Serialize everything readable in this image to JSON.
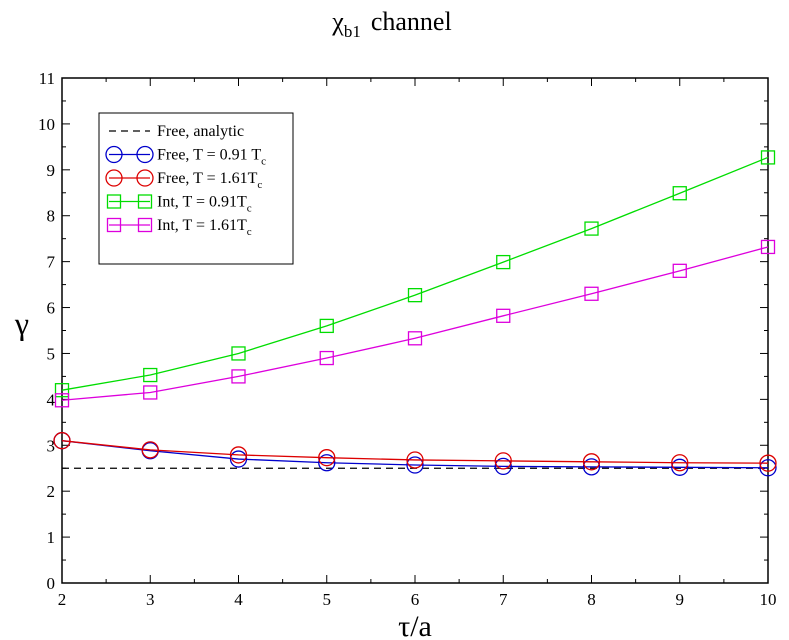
{
  "title": {
    "main": "χ",
    "sub": "b1",
    "rest": "channel"
  },
  "chart_data": {
    "type": "line",
    "xlabel": "τ/a",
    "ylabel": "γ",
    "xlim": [
      2,
      10
    ],
    "ylim": [
      0,
      11
    ],
    "x_ticks": [
      2,
      3,
      4,
      5,
      6,
      7,
      8,
      9,
      10
    ],
    "y_ticks": [
      0,
      1,
      2,
      3,
      4,
      5,
      6,
      7,
      8,
      9,
      10,
      11
    ],
    "grid": false,
    "legend_position": "top-left",
    "x": [
      2,
      3,
      4,
      5,
      6,
      7,
      8,
      9,
      10
    ],
    "series": [
      {
        "key": "analytic",
        "name": "Free, analytic",
        "color": "#000000",
        "dashed": true,
        "marker": "none",
        "values": [
          2.5,
          2.5,
          2.5,
          2.5,
          2.5,
          2.5,
          2.5,
          2.5,
          2.5
        ]
      },
      {
        "key": "free091",
        "name": "Free, T = 0.91 T",
        "name_sub": "c",
        "color": "#0000cc",
        "dashed": false,
        "marker": "circle",
        "values": [
          3.1,
          2.88,
          2.7,
          2.62,
          2.57,
          2.54,
          2.53,
          2.52,
          2.51
        ]
      },
      {
        "key": "free161",
        "name": "Free, T = 1.61T",
        "name_sub": "c",
        "color": "#dd0000",
        "dashed": false,
        "marker": "circle",
        "values": [
          3.1,
          2.9,
          2.79,
          2.73,
          2.68,
          2.66,
          2.64,
          2.62,
          2.61
        ]
      },
      {
        "key": "int091",
        "name": "Int, T = 0.91T",
        "name_sub": "c",
        "color": "#00dd00",
        "dashed": false,
        "marker": "square",
        "values": [
          4.2,
          4.53,
          5.0,
          5.6,
          6.27,
          6.99,
          7.72,
          8.49,
          9.27
        ]
      },
      {
        "key": "int161",
        "name": "Int, T = 1.61T",
        "name_sub": "c",
        "color": "#dd00dd",
        "dashed": false,
        "marker": "square",
        "values": [
          3.98,
          4.15,
          4.5,
          4.9,
          5.33,
          5.82,
          6.3,
          6.8,
          7.32
        ]
      }
    ]
  }
}
